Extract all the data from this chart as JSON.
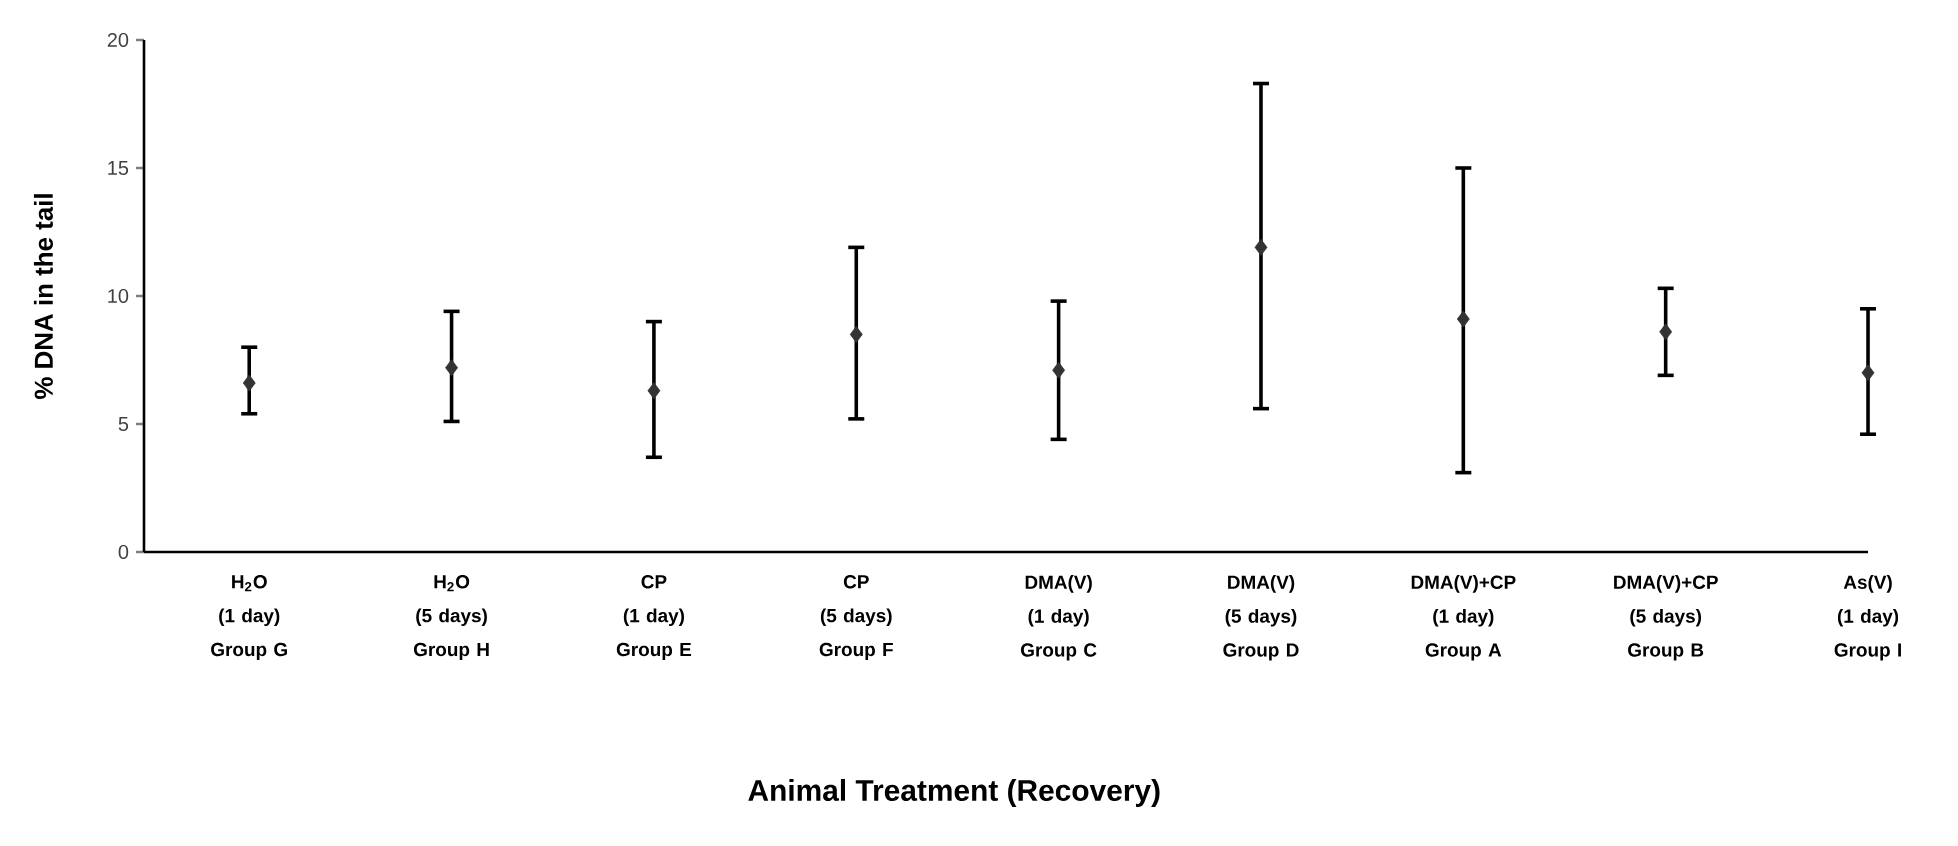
{
  "chart_data": {
    "type": "scatter",
    "categories": [
      "H$_{2}$O\n(1 day)\nGroup G",
      "H$_{2}$O\n(5 days)\nGroup H",
      "CP\n(1 day)\nGroup E",
      "CP\n(5 days)\nGroup F",
      "DMA(V)\n(1 day)\nGroup C",
      "DMA(V)\n(5 days)\nGroup D",
      "DMA(V)+CP\n(1 day)\nGroup A",
      "DMA(V)+CP\n(5 days)\nGroup B",
      "As(V)\n(1 day)\nGroup I"
    ],
    "values": [
      6.6,
      7.2,
      6.3,
      8.5,
      7.1,
      11.9,
      9.1,
      8.6,
      7.0
    ],
    "errors": [
      [
        5.4,
        8.0
      ],
      [
        5.1,
        9.4
      ],
      [
        3.7,
        9.0
      ],
      [
        5.2,
        11.9
      ],
      [
        4.4,
        9.8
      ],
      [
        5.6,
        18.3
      ],
      [
        3.1,
        15.0
      ],
      [
        6.9,
        10.3
      ],
      [
        4.6,
        9.5
      ]
    ],
    "color": "#333333",
    "marker": "diamond",
    "xlabel": "Animal Treatment (Recovery)",
    "ylabel": "% DNA in the tail",
    "ylim": [
      0,
      20
    ],
    "yticks": [
      0,
      5,
      10,
      15,
      20
    ],
    "grid": false,
    "legend": false
  }
}
